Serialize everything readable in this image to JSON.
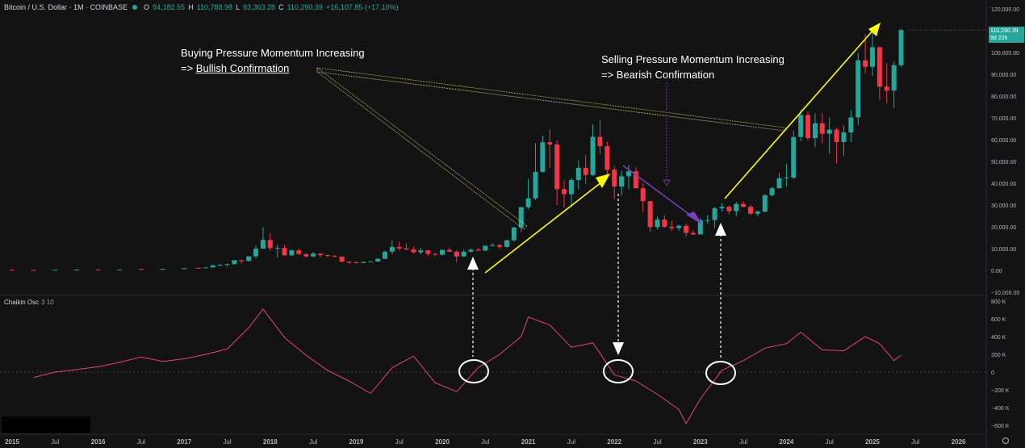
{
  "header": {
    "symbol": "Bitcoin / U.S. Dollar · 1M · COINBASE",
    "open_label": "O",
    "open": "94,182.55",
    "high_label": "H",
    "high": "110,788.98",
    "low_label": "L",
    "low": "93,363.28",
    "close_label": "C",
    "close": "110,290.39",
    "change": "+16,107.85 (+17.10%)"
  },
  "price_tag": {
    "price": "110,290.39",
    "countdown": "9d 22h"
  },
  "indicator": {
    "name": "Chaikin Osc",
    "params": "3 10"
  },
  "annotations": {
    "buying_line1": "Buying Pressure Momentum Increasing",
    "buying_line2_prefix": "=> ",
    "buying_line2_em": "Bullish Confirmation",
    "selling_line1": "Selling Pressure Momentum Increasing",
    "selling_line2": "=> Bearish Confirmation"
  },
  "price_axis": [
    "120,000.00",
    "110,000.00",
    "100,000.00",
    "90,000.00",
    "80,000.00",
    "70,000.00",
    "60,000.00",
    "50,000.00",
    "40,000.00",
    "30,000.00",
    "20,000.00",
    "10,000.00",
    "0.00",
    "−10,000.00"
  ],
  "osc_axis": [
    "800 K",
    "600 K",
    "400 K",
    "200 K",
    "0",
    "−200 K",
    "−400 K",
    "−600 K"
  ],
  "time_axis": [
    "2015",
    "Jul",
    "2016",
    "Jul",
    "2017",
    "Jul",
    "2018",
    "Jul",
    "2019",
    "Jul",
    "2020",
    "Jul",
    "2021",
    "Jul",
    "2022",
    "Jul",
    "2023",
    "Jul",
    "2024",
    "Jul",
    "2025",
    "Jul",
    "2026"
  ],
  "colors": {
    "up": "#26a69a",
    "down": "#f23645",
    "osc": "#e8436a",
    "annotation_arrow": "#ffff00",
    "purple": "#7b3fbf"
  },
  "chart_data": {
    "type": "candlestick",
    "symbol": "Bitcoin / U.S. Dollar",
    "interval": "1M",
    "candles": [
      {
        "date": "2015-01",
        "o": 300,
        "h": 320,
        "l": 200,
        "c": 220
      },
      {
        "date": "2015-04",
        "o": 240,
        "h": 260,
        "l": 220,
        "c": 230
      },
      {
        "date": "2015-07",
        "o": 260,
        "h": 310,
        "l": 250,
        "c": 280
      },
      {
        "date": "2015-10",
        "o": 310,
        "h": 500,
        "l": 300,
        "c": 380
      },
      {
        "date": "2016-01",
        "o": 430,
        "h": 460,
        "l": 360,
        "c": 370
      },
      {
        "date": "2016-04",
        "o": 420,
        "h": 460,
        "l": 410,
        "c": 450
      },
      {
        "date": "2016-07",
        "o": 670,
        "h": 700,
        "l": 600,
        "c": 620
      },
      {
        "date": "2016-10",
        "o": 610,
        "h": 740,
        "l": 600,
        "c": 700
      },
      {
        "date": "2017-01",
        "o": 960,
        "h": 1150,
        "l": 800,
        "c": 970
      },
      {
        "date": "2017-03",
        "o": 1190,
        "h": 1300,
        "l": 900,
        "c": 1070
      },
      {
        "date": "2017-04",
        "o": 1070,
        "h": 1400,
        "l": 1060,
        "c": 1350
      },
      {
        "date": "2017-05",
        "o": 1350,
        "h": 2800,
        "l": 1350,
        "c": 2300
      },
      {
        "date": "2017-06",
        "o": 2300,
        "h": 3000,
        "l": 2200,
        "c": 2500
      },
      {
        "date": "2017-07",
        "o": 2500,
        "h": 2900,
        "l": 1850,
        "c": 2870
      },
      {
        "date": "2017-08",
        "o": 2870,
        "h": 4700,
        "l": 2700,
        "c": 4700
      },
      {
        "date": "2017-09",
        "o": 4700,
        "h": 5000,
        "l": 2970,
        "c": 4340
      },
      {
        "date": "2017-10",
        "o": 4340,
        "h": 6470,
        "l": 4110,
        "c": 6470
      },
      {
        "date": "2017-11",
        "o": 6470,
        "h": 11500,
        "l": 5500,
        "c": 10000
      },
      {
        "date": "2017-12",
        "o": 10000,
        "h": 19800,
        "l": 10000,
        "c": 14000
      },
      {
        "date": "2018-01",
        "o": 14000,
        "h": 17200,
        "l": 9000,
        "c": 10200
      },
      {
        "date": "2018-02",
        "o": 10200,
        "h": 11800,
        "l": 6000,
        "c": 10300
      },
      {
        "date": "2018-03",
        "o": 10300,
        "h": 11700,
        "l": 6600,
        "c": 6900
      },
      {
        "date": "2018-04",
        "o": 6900,
        "h": 9700,
        "l": 6500,
        "c": 9200
      },
      {
        "date": "2018-05",
        "o": 9200,
        "h": 10000,
        "l": 7100,
        "c": 7500
      },
      {
        "date": "2018-06",
        "o": 7500,
        "h": 7800,
        "l": 5800,
        "c": 6400
      },
      {
        "date": "2018-07",
        "o": 6400,
        "h": 8500,
        "l": 6100,
        "c": 7700
      },
      {
        "date": "2018-08",
        "o": 7700,
        "h": 7800,
        "l": 5900,
        "c": 7000
      },
      {
        "date": "2018-09",
        "o": 7000,
        "h": 7400,
        "l": 6100,
        "c": 6600
      },
      {
        "date": "2018-10",
        "o": 6600,
        "h": 7000,
        "l": 6000,
        "c": 6300
      },
      {
        "date": "2018-11",
        "o": 6300,
        "h": 6500,
        "l": 3600,
        "c": 4000
      },
      {
        "date": "2018-12",
        "o": 4000,
        "h": 4300,
        "l": 3100,
        "c": 3700
      },
      {
        "date": "2019-01",
        "o": 3700,
        "h": 4100,
        "l": 3300,
        "c": 3400
      },
      {
        "date": "2019-02",
        "o": 3400,
        "h": 4200,
        "l": 3400,
        "c": 3800
      },
      {
        "date": "2019-03",
        "o": 3800,
        "h": 4100,
        "l": 3700,
        "c": 4100
      },
      {
        "date": "2019-04",
        "o": 4100,
        "h": 5600,
        "l": 4000,
        "c": 5300
      },
      {
        "date": "2019-05",
        "o": 5300,
        "h": 9100,
        "l": 5300,
        "c": 8600
      },
      {
        "date": "2019-06",
        "o": 8600,
        "h": 13800,
        "l": 7500,
        "c": 10800
      },
      {
        "date": "2019-07",
        "o": 10800,
        "h": 13200,
        "l": 9100,
        "c": 10100
      },
      {
        "date": "2019-08",
        "o": 10100,
        "h": 12300,
        "l": 9300,
        "c": 9600
      },
      {
        "date": "2019-09",
        "o": 9600,
        "h": 10900,
        "l": 7700,
        "c": 8300
      },
      {
        "date": "2019-10",
        "o": 8300,
        "h": 10400,
        "l": 7300,
        "c": 9200
      },
      {
        "date": "2019-11",
        "o": 9200,
        "h": 9500,
        "l": 6500,
        "c": 7600
      },
      {
        "date": "2019-12",
        "o": 7600,
        "h": 7800,
        "l": 6400,
        "c": 7200
      },
      {
        "date": "2020-01",
        "o": 7200,
        "h": 9600,
        "l": 6900,
        "c": 9400
      },
      {
        "date": "2020-02",
        "o": 9400,
        "h": 10500,
        "l": 8500,
        "c": 8600
      },
      {
        "date": "2020-03",
        "o": 8600,
        "h": 9200,
        "l": 3800,
        "c": 6400
      },
      {
        "date": "2020-04",
        "o": 6400,
        "h": 9500,
        "l": 6200,
        "c": 8600
      },
      {
        "date": "2020-05",
        "o": 8600,
        "h": 10100,
        "l": 8100,
        "c": 9500
      },
      {
        "date": "2020-06",
        "o": 9500,
        "h": 10400,
        "l": 8900,
        "c": 9100
      },
      {
        "date": "2020-07",
        "o": 9100,
        "h": 11400,
        "l": 8900,
        "c": 11300
      },
      {
        "date": "2020-08",
        "o": 11300,
        "h": 12500,
        "l": 11000,
        "c": 11600
      },
      {
        "date": "2020-09",
        "o": 11600,
        "h": 12100,
        "l": 9900,
        "c": 10800
      },
      {
        "date": "2020-10",
        "o": 10800,
        "h": 14100,
        "l": 10400,
        "c": 13800
      },
      {
        "date": "2020-11",
        "o": 13800,
        "h": 19900,
        "l": 13200,
        "c": 19700
      },
      {
        "date": "2020-12",
        "o": 19700,
        "h": 29300,
        "l": 17600,
        "c": 29000
      },
      {
        "date": "2021-01",
        "o": 29000,
        "h": 42000,
        "l": 28100,
        "c": 33100
      },
      {
        "date": "2021-02",
        "o": 33100,
        "h": 58400,
        "l": 32300,
        "c": 45200
      },
      {
        "date": "2021-03",
        "o": 45200,
        "h": 61800,
        "l": 45000,
        "c": 58800
      },
      {
        "date": "2021-04",
        "o": 58800,
        "h": 64900,
        "l": 47000,
        "c": 57800
      },
      {
        "date": "2021-05",
        "o": 57800,
        "h": 59600,
        "l": 30000,
        "c": 37300
      },
      {
        "date": "2021-06",
        "o": 37300,
        "h": 41300,
        "l": 28800,
        "c": 35000
      },
      {
        "date": "2021-07",
        "o": 35000,
        "h": 42400,
        "l": 29300,
        "c": 41500
      },
      {
        "date": "2021-08",
        "o": 41500,
        "h": 50500,
        "l": 37300,
        "c": 47100
      },
      {
        "date": "2021-09",
        "o": 47100,
        "h": 52900,
        "l": 39600,
        "c": 43800
      },
      {
        "date": "2021-10",
        "o": 43800,
        "h": 67000,
        "l": 43300,
        "c": 61300
      },
      {
        "date": "2021-11",
        "o": 61300,
        "h": 69000,
        "l": 53300,
        "c": 57000
      },
      {
        "date": "2021-12",
        "o": 57000,
        "h": 59100,
        "l": 42000,
        "c": 46200
      },
      {
        "date": "2022-01",
        "o": 46200,
        "h": 47900,
        "l": 32900,
        "c": 38500
      },
      {
        "date": "2022-02",
        "o": 38500,
        "h": 45800,
        "l": 34300,
        "c": 43200
      },
      {
        "date": "2022-03",
        "o": 43200,
        "h": 48200,
        "l": 37200,
        "c": 45500
      },
      {
        "date": "2022-04",
        "o": 45500,
        "h": 47400,
        "l": 37700,
        "c": 37700
      },
      {
        "date": "2022-05",
        "o": 37700,
        "h": 40000,
        "l": 26700,
        "c": 31800
      },
      {
        "date": "2022-06",
        "o": 31800,
        "h": 31900,
        "l": 17600,
        "c": 19900
      },
      {
        "date": "2022-07",
        "o": 19900,
        "h": 24700,
        "l": 18800,
        "c": 23300
      },
      {
        "date": "2022-08",
        "o": 23300,
        "h": 25200,
        "l": 19600,
        "c": 20000
      },
      {
        "date": "2022-09",
        "o": 20000,
        "h": 22800,
        "l": 18100,
        "c": 19400
      },
      {
        "date": "2022-10",
        "o": 19400,
        "h": 21100,
        "l": 18200,
        "c": 20500
      },
      {
        "date": "2022-11",
        "o": 20500,
        "h": 21500,
        "l": 15500,
        "c": 17200
      },
      {
        "date": "2022-12",
        "o": 17200,
        "h": 18400,
        "l": 16300,
        "c": 16500
      },
      {
        "date": "2023-01",
        "o": 16500,
        "h": 23900,
        "l": 16500,
        "c": 23100
      },
      {
        "date": "2023-02",
        "o": 23100,
        "h": 25300,
        "l": 21400,
        "c": 23100
      },
      {
        "date": "2023-03",
        "o": 23100,
        "h": 29200,
        "l": 19500,
        "c": 28500
      },
      {
        "date": "2023-04",
        "o": 28500,
        "h": 31000,
        "l": 26900,
        "c": 29200
      },
      {
        "date": "2023-05",
        "o": 29200,
        "h": 29800,
        "l": 25800,
        "c": 27200
      },
      {
        "date": "2023-06",
        "o": 27200,
        "h": 31400,
        "l": 24800,
        "c": 30500
      },
      {
        "date": "2023-07",
        "o": 30500,
        "h": 31800,
        "l": 28900,
        "c": 29200
      },
      {
        "date": "2023-08",
        "o": 29200,
        "h": 30200,
        "l": 25300,
        "c": 26000
      },
      {
        "date": "2023-09",
        "o": 26000,
        "h": 27500,
        "l": 24900,
        "c": 27000
      },
      {
        "date": "2023-10",
        "o": 27000,
        "h": 35000,
        "l": 26500,
        "c": 34500
      },
      {
        "date": "2023-11",
        "o": 34500,
        "h": 38400,
        "l": 34000,
        "c": 37700
      },
      {
        "date": "2023-12",
        "o": 37700,
        "h": 44700,
        "l": 37600,
        "c": 42300
      },
      {
        "date": "2024-01",
        "o": 42300,
        "h": 48900,
        "l": 38500,
        "c": 42600
      },
      {
        "date": "2024-02",
        "o": 42600,
        "h": 64000,
        "l": 41900,
        "c": 61200
      },
      {
        "date": "2024-03",
        "o": 61200,
        "h": 73800,
        "l": 59300,
        "c": 71300
      },
      {
        "date": "2024-04",
        "o": 71300,
        "h": 72800,
        "l": 59600,
        "c": 60700
      },
      {
        "date": "2024-05",
        "o": 60700,
        "h": 72000,
        "l": 56600,
        "c": 67500
      },
      {
        "date": "2024-06",
        "o": 67500,
        "h": 72000,
        "l": 58400,
        "c": 62700
      },
      {
        "date": "2024-07",
        "o": 62700,
        "h": 70100,
        "l": 53500,
        "c": 64600
      },
      {
        "date": "2024-08",
        "o": 64600,
        "h": 65600,
        "l": 49100,
        "c": 58900
      },
      {
        "date": "2024-09",
        "o": 58900,
        "h": 66500,
        "l": 52600,
        "c": 63300
      },
      {
        "date": "2024-10",
        "o": 63300,
        "h": 73600,
        "l": 58900,
        "c": 70200
      },
      {
        "date": "2024-11",
        "o": 70200,
        "h": 99800,
        "l": 66800,
        "c": 96400
      },
      {
        "date": "2024-12",
        "o": 96400,
        "h": 108300,
        "l": 90500,
        "c": 93400
      },
      {
        "date": "2025-01",
        "o": 93400,
        "h": 109400,
        "l": 89200,
        "c": 102400
      },
      {
        "date": "2025-02",
        "o": 102400,
        "h": 102800,
        "l": 78200,
        "c": 84300
      },
      {
        "date": "2025-03",
        "o": 84300,
        "h": 95000,
        "l": 76600,
        "c": 82500
      },
      {
        "date": "2025-04",
        "o": 82500,
        "h": 95800,
        "l": 74500,
        "c": 94200
      },
      {
        "date": "2025-05",
        "o": 94182.55,
        "h": 110788.98,
        "l": 93363.28,
        "c": 110290.39
      }
    ],
    "oscillator": {
      "name": "Chaikin Osc",
      "params": [
        3,
        10
      ],
      "points": [
        {
          "date": "2015-04",
          "v": -60000
        },
        {
          "date": "2015-07",
          "v": 0
        },
        {
          "date": "2015-10",
          "v": 30000
        },
        {
          "date": "2016-01",
          "v": 60000
        },
        {
          "date": "2016-04",
          "v": 110000
        },
        {
          "date": "2016-07",
          "v": 170000
        },
        {
          "date": "2016-10",
          "v": 120000
        },
        {
          "date": "2017-01",
          "v": 150000
        },
        {
          "date": "2017-04",
          "v": 200000
        },
        {
          "date": "2017-07",
          "v": 260000
        },
        {
          "date": "2017-10",
          "v": 500000
        },
        {
          "date": "2017-12",
          "v": 710000
        },
        {
          "date": "2018-03",
          "v": 390000
        },
        {
          "date": "2018-06",
          "v": 190000
        },
        {
          "date": "2018-09",
          "v": 20000
        },
        {
          "date": "2018-12",
          "v": -100000
        },
        {
          "date": "2019-03",
          "v": -240000
        },
        {
          "date": "2019-06",
          "v": 50000
        },
        {
          "date": "2019-09",
          "v": 180000
        },
        {
          "date": "2019-12",
          "v": -120000
        },
        {
          "date": "2020-03",
          "v": -220000
        },
        {
          "date": "2020-06",
          "v": 50000
        },
        {
          "date": "2020-09",
          "v": 200000
        },
        {
          "date": "2020-12",
          "v": 400000
        },
        {
          "date": "2021-01",
          "v": 620000
        },
        {
          "date": "2021-04",
          "v": 530000
        },
        {
          "date": "2021-07",
          "v": 280000
        },
        {
          "date": "2021-10",
          "v": 330000
        },
        {
          "date": "2022-01",
          "v": -30000
        },
        {
          "date": "2022-04",
          "v": -100000
        },
        {
          "date": "2022-07",
          "v": -250000
        },
        {
          "date": "2022-10",
          "v": -420000
        },
        {
          "date": "2022-11",
          "v": -580000
        },
        {
          "date": "2023-01",
          "v": -300000
        },
        {
          "date": "2023-04",
          "v": 20000
        },
        {
          "date": "2023-07",
          "v": 130000
        },
        {
          "date": "2023-10",
          "v": 270000
        },
        {
          "date": "2024-01",
          "v": 320000
        },
        {
          "date": "2024-03",
          "v": 450000
        },
        {
          "date": "2024-06",
          "v": 250000
        },
        {
          "date": "2024-09",
          "v": 240000
        },
        {
          "date": "2024-12",
          "v": 400000
        },
        {
          "date": "2025-02",
          "v": 320000
        },
        {
          "date": "2025-04",
          "v": 130000
        },
        {
          "date": "2025-05",
          "v": 190000
        }
      ]
    },
    "price_ylim": [
      -10000,
      120000
    ],
    "osc_ylim": [
      -600000,
      800000
    ]
  }
}
